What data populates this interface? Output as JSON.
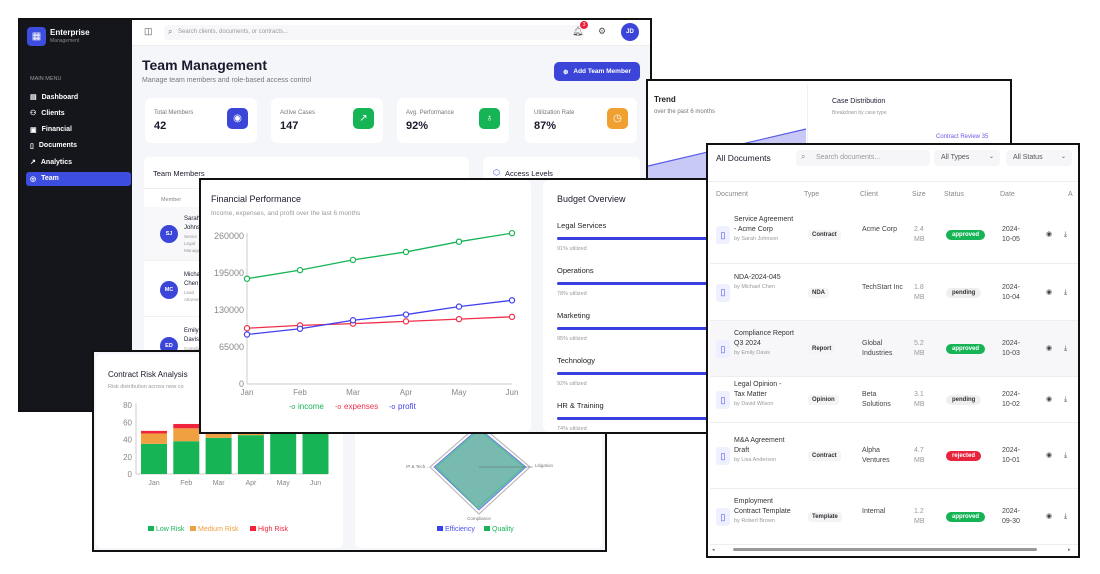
{
  "dashboard": {
    "brand": {
      "name": "Enterprise",
      "sub": "Management"
    },
    "menu_title": "MAIN MENU",
    "menu": [
      {
        "label": "Dashboard",
        "icon": "grid-icon"
      },
      {
        "label": "Clients",
        "icon": "users-icon"
      },
      {
        "label": "Financial",
        "icon": "wallet-icon"
      },
      {
        "label": "Documents",
        "icon": "file-icon"
      },
      {
        "label": "Analytics",
        "icon": "trend-icon"
      },
      {
        "label": "Team",
        "icon": "team-icon",
        "active": true
      }
    ],
    "search_placeholder": "Search clients, documents, or contracts...",
    "notification_count": "3",
    "avatar": "JD",
    "title": "Team Management",
    "subtitle": "Manage team members and role-based access control",
    "add_button": "Add Team Member",
    "stats": [
      {
        "label": "Total Members",
        "value": "42",
        "color": "#3b46d9",
        "icon": "user-badge-icon"
      },
      {
        "label": "Active Cases",
        "value": "147",
        "color": "#16b455",
        "icon": "trend-up-icon"
      },
      {
        "label": "Avg. Performance",
        "value": "92%",
        "color": "#16b455",
        "icon": "award-icon"
      },
      {
        "label": "Utilization Rate",
        "value": "87%",
        "color": "#f0a030",
        "icon": "clock-icon"
      }
    ],
    "team_members_title": "Team Members",
    "member_col": "Member",
    "members": [
      {
        "initials": "SJ",
        "name1": "Sarah",
        "name2": "Johnson",
        "role1": "Senior",
        "role2": "Legal",
        "role3": "Manager"
      },
      {
        "initials": "MC",
        "name1": "Michael",
        "name2": "Chen",
        "role1": "Lead",
        "role2": "Attorney"
      },
      {
        "initials": "ED",
        "name1": "Emily",
        "name2": "Davis",
        "role1": "Compliance",
        "role2": "Officer"
      }
    ],
    "access_levels_title": "Access Levels"
  },
  "background_window": {
    "trend_title": "Trend",
    "trend_sub": "over the past 6 months",
    "case_title": "Case Distribution",
    "case_sub": "Breakdown by case type",
    "case_label": "Contract Review 35"
  },
  "financial": {
    "title": "Financial Performance",
    "subtitle": "Income, expenses, and profit over the last 6 months",
    "budget_title": "Budget Overview",
    "budget": [
      {
        "name": "Legal Services",
        "utilized": 91,
        "text": "91% utilized"
      },
      {
        "name": "Operations",
        "utilized": 78,
        "text": "78% utilized"
      },
      {
        "name": "Marketing",
        "utilized": 95,
        "text": "95% utilized"
      },
      {
        "name": "Technology",
        "utilized": 92,
        "text": "92% utilized"
      },
      {
        "name": "HR & Training",
        "utilized": 74,
        "text": "74% utilized"
      }
    ]
  },
  "risk": {
    "title": "Contract Risk Analysis",
    "subtitle": "Risk distribution across new co",
    "radar_axes": [
      "IP & Tech...",
      "Litigation",
      "Compliance"
    ],
    "radar_legend": [
      "Efficiency",
      "Quality"
    ]
  },
  "documents": {
    "title": "All Documents",
    "search_placeholder": "Search documents...",
    "type_filter": "All Types",
    "status_filter": "All Status",
    "columns": [
      "Document",
      "Type",
      "Client",
      "Size",
      "Status",
      "Date",
      "A"
    ],
    "rows": [
      {
        "name": "Service Agreement - Acme Corp",
        "by": "by Sarah Johnson",
        "type": "Contract",
        "client": "Acme Corp",
        "size": "2.4 MB",
        "status": "approved",
        "date": "2024-10-05"
      },
      {
        "name": "NDA-2024-045",
        "by": "by Michael Chen",
        "type": "NDA",
        "client": "TechStart Inc",
        "size": "1.8 MB",
        "status": "pending",
        "date": "2024-10-04"
      },
      {
        "name": "Compliance Report Q3 2024",
        "by": "by Emily Davis",
        "type": "Report",
        "client": "Global Industries",
        "size": "5.2 MB",
        "status": "approved",
        "date": "2024-10-03"
      },
      {
        "name": "Legal Opinion - Tax Matter",
        "by": "by David Wilson",
        "type": "Opinion",
        "client": "Beta Solutions",
        "size": "3.1 MB",
        "status": "pending",
        "date": "2024-10-02"
      },
      {
        "name": "M&A Agreement Draft",
        "by": "by Lisa Anderson",
        "type": "Contract",
        "client": "Alpha Ventures",
        "size": "4.7 MB",
        "status": "rejected",
        "date": "2024-10-01"
      },
      {
        "name": "Employment Contract Template",
        "by": "by Robert Brown",
        "type": "Template",
        "client": "Internal",
        "size": "1.2 MB",
        "status": "approved",
        "date": "2024-09-30"
      }
    ],
    "status_colors": {
      "approved": "#16b455",
      "pending": "#efefef",
      "rejected": "#e8243c"
    }
  },
  "chart_data": [
    {
      "type": "line",
      "categories": [
        "Jan",
        "Feb",
        "Mar",
        "Apr",
        "May",
        "Jun"
      ],
      "series": [
        {
          "name": "income",
          "color": "#16b455",
          "values": [
            185000,
            200000,
            218000,
            232000,
            250000,
            265000
          ]
        },
        {
          "name": "expenses",
          "color": "#f0304a",
          "values": [
            98000,
            103000,
            106000,
            110000,
            114000,
            118000
          ]
        },
        {
          "name": "profit",
          "color": "#4040f0",
          "values": [
            87000,
            97000,
            112000,
            122000,
            136000,
            147000
          ]
        }
      ],
      "yticks": [
        "0",
        "65000",
        "130000",
        "195000",
        "260000"
      ],
      "ylim": [
        0,
        260000
      ],
      "legend": "bottom"
    },
    {
      "type": "bar",
      "stacked": true,
      "categories": [
        "Jan",
        "Feb",
        "Mar",
        "Apr",
        "May",
        "Jun"
      ],
      "series": [
        {
          "name": "Low Risk",
          "color": "#16b455",
          "values": [
            35,
            38,
            42,
            45,
            48,
            52
          ]
        },
        {
          "name": "Medium Risk",
          "color": "#f0a040",
          "values": [
            12,
            15,
            12,
            10,
            8,
            5
          ]
        },
        {
          "name": "High Risk",
          "color": "#f0243c",
          "values": [
            3,
            5,
            3,
            2,
            2,
            1
          ]
        }
      ],
      "yticks": [
        "0",
        "20",
        "40",
        "60",
        "80"
      ],
      "ylim": [
        0,
        80
      ],
      "legend": "bottom"
    }
  ]
}
